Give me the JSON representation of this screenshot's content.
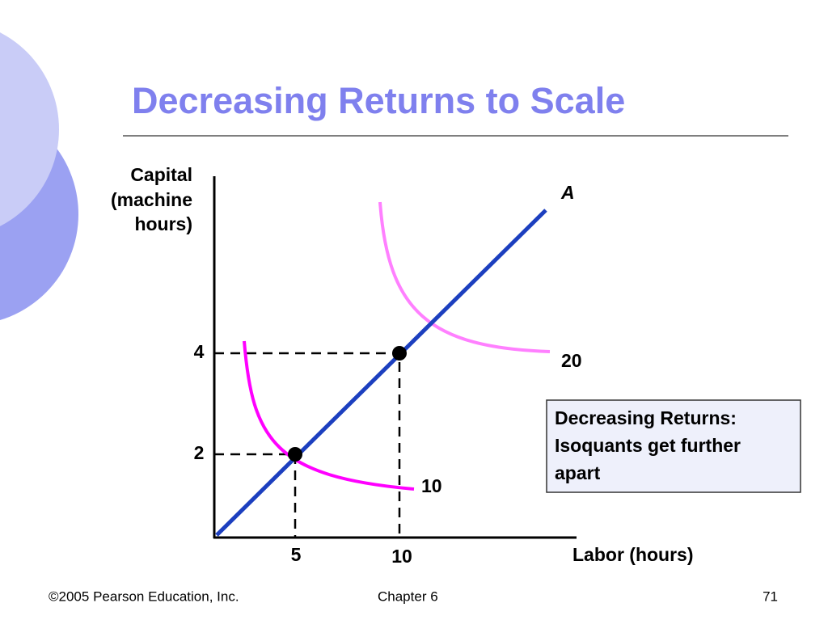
{
  "title": "Decreasing Returns to Scale",
  "diagram": {
    "y_axis_label": [
      "Capital",
      "(machine",
      "hours)"
    ],
    "x_axis_label": "Labor (hours)",
    "ray_label": "A",
    "y_ticks": [
      4,
      2
    ],
    "x_ticks": [
      5,
      10
    ],
    "isoquant_labels": [
      10,
      20
    ],
    "callout": [
      "Decreasing Returns:",
      "Isoquants get further",
      "apart"
    ]
  },
  "footer": {
    "copyright": "©2005 Pearson Education, Inc.",
    "chapter": "Chapter 6",
    "page": "71"
  }
}
